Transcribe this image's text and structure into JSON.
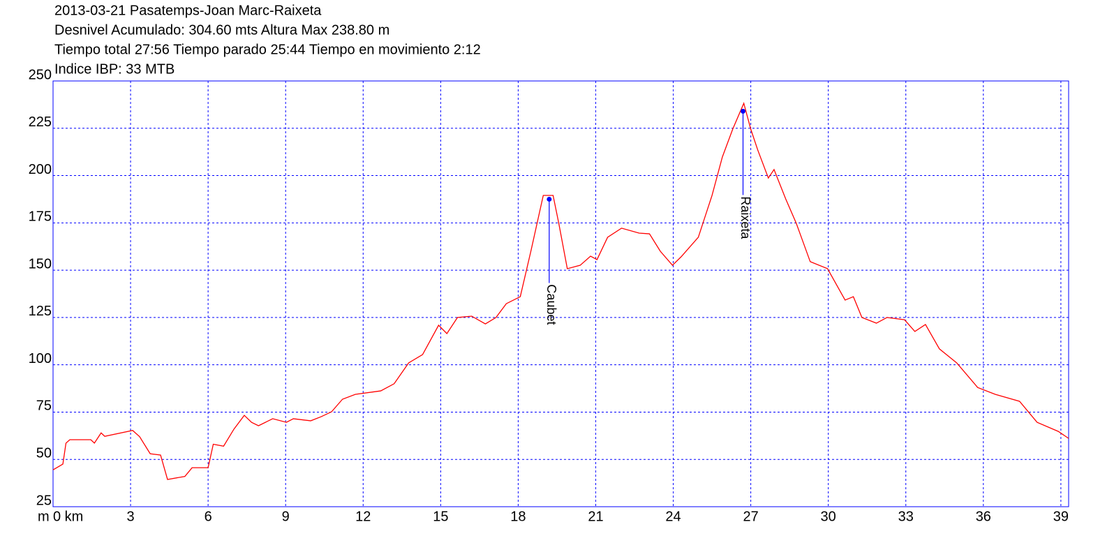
{
  "chart_data": {
    "type": "line",
    "title_lines": [
      "2013-03-21 Pasatemps-Joan Marc-Raixeta",
      "Desnivel Acumulado: 304.60 mts  Altura Max 238.80 m",
      "Tiempo total 27:56 Tiempo parado 25:44 Tiempo en movimiento 2:12",
      "Indice IBP: 33 MTB"
    ],
    "y_label": "m",
    "xlim": [
      0,
      39.3
    ],
    "ylim": [
      25,
      250
    ],
    "xticks": [
      {
        "value": 0,
        "label": "0 km"
      },
      3,
      6,
      9,
      12,
      15,
      18,
      21,
      24,
      27,
      30,
      33,
      36,
      39
    ],
    "yticks": [
      25,
      50,
      75,
      100,
      125,
      150,
      175,
      200,
      225,
      250
    ],
    "grid": true,
    "grid_color": "#0000ff",
    "series": [
      {
        "color": "#ff0000",
        "x": [
          0,
          0.38,
          0.5,
          0.65,
          1.46,
          1.6,
          1.86,
          2.0,
          3.08,
          3.35,
          3.76,
          4.16,
          4.43,
          5.1,
          5.38,
          6.0,
          6.2,
          6.6,
          7.0,
          7.4,
          7.68,
          7.95,
          8.5,
          9.03,
          9.3,
          9.97,
          10.38,
          10.78,
          11.2,
          11.7,
          12.68,
          13.2,
          13.76,
          14.3,
          14.92,
          15.24,
          15.65,
          16.2,
          16.73,
          17.14,
          17.54,
          18.08,
          18.49,
          18.97,
          19.35,
          19.57,
          19.9,
          20.4,
          20.8,
          21.05,
          21.46,
          22.0,
          22.68,
          23.08,
          23.5,
          23.97,
          24.3,
          24.97,
          25.5,
          25.9,
          26.3,
          26.73,
          27.0,
          27.27,
          27.68,
          27.9,
          28.35,
          28.76,
          29.3,
          29.97,
          30.65,
          30.97,
          31.3,
          31.86,
          32.27,
          32.95,
          33.35,
          33.76,
          34.3,
          34.97,
          35.78,
          36.46,
          37.4,
          38.08,
          38.9,
          39.3
        ],
        "values": [
          44.5,
          47.5,
          58.6,
          60.4,
          60.4,
          58.6,
          64,
          62.2,
          65.3,
          62,
          53,
          52.3,
          39.4,
          41,
          45.6,
          45.6,
          58,
          57,
          66,
          73.3,
          69.6,
          67.8,
          71.5,
          69.6,
          71.5,
          70.4,
          72.6,
          75.2,
          81.8,
          84.4,
          86.2,
          90,
          101,
          105.4,
          120.9,
          116.5,
          125,
          125.7,
          121.6,
          125,
          132.3,
          136,
          160,
          189.5,
          189.5,
          174.8,
          150.8,
          152.6,
          157.4,
          155.6,
          167.4,
          172.2,
          169.6,
          169.2,
          160,
          152.6,
          157,
          167.4,
          189.5,
          209.8,
          224.5,
          238.2,
          224.5,
          213.5,
          198.7,
          203.2,
          187.7,
          174.8,
          154.5,
          150.8,
          134.2,
          136,
          125,
          122,
          125,
          123.8,
          117.6,
          121.3,
          108.4,
          101,
          88,
          84.4,
          80.7,
          69.6,
          64.8,
          61.1
        ]
      }
    ],
    "annotations": [
      {
        "text": "Caubet",
        "x": 19.2,
        "y": 187.5,
        "color": "#0000ff"
      },
      {
        "text": "Raixeta",
        "x": 26.7,
        "y": 234,
        "color": "#0000ff"
      }
    ]
  }
}
